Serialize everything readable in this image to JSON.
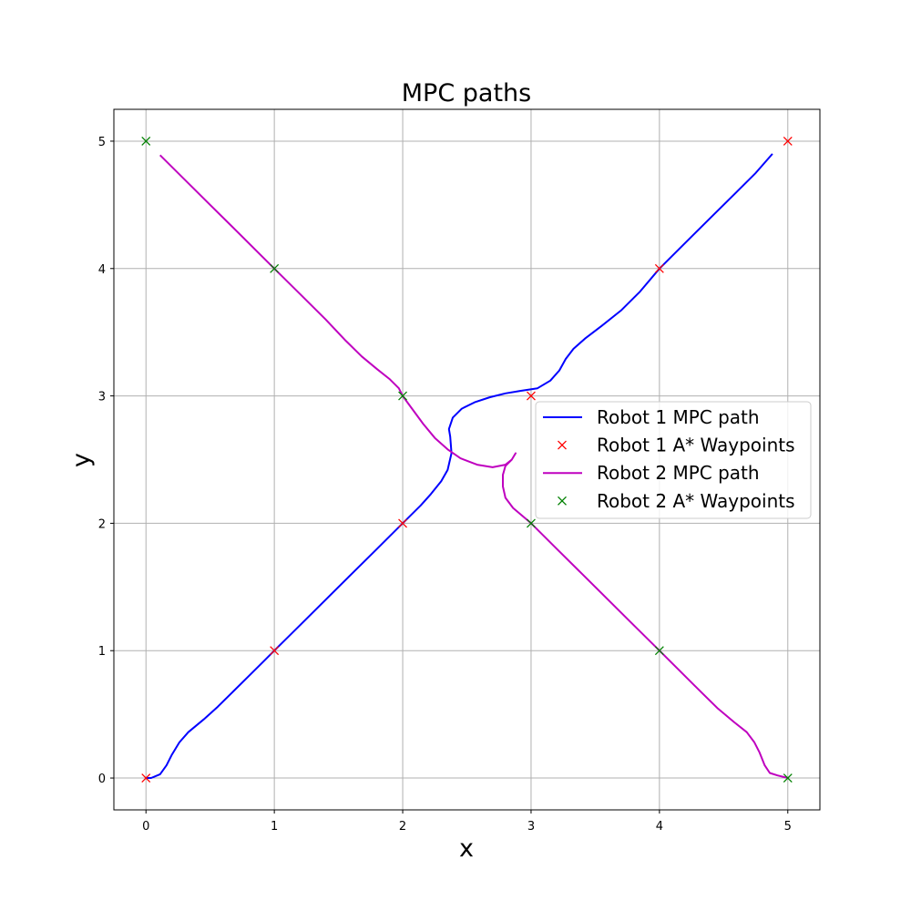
{
  "chart_data": {
    "type": "line",
    "title": "MPC paths",
    "xlabel": "x",
    "ylabel": "y",
    "xlim": [
      -0.25,
      5.25
    ],
    "ylim": [
      -0.25,
      5.25
    ],
    "xticks": [
      0,
      1,
      2,
      3,
      4,
      5
    ],
    "yticks": [
      0,
      1,
      2,
      3,
      4,
      5
    ],
    "grid": true,
    "legend_position": "center-right",
    "series": [
      {
        "name": "Robot 1 MPC path",
        "kind": "line",
        "color": "#0000ff",
        "x": [
          0.0,
          0.04,
          0.11,
          0.16,
          0.2,
          0.26,
          0.33,
          0.45,
          0.56,
          0.68,
          0.8,
          0.92,
          1.0,
          1.2,
          1.4,
          1.6,
          1.8,
          2.0,
          2.14,
          2.22,
          2.3,
          2.35,
          2.38,
          2.37,
          2.36,
          2.39,
          2.46,
          2.56,
          2.68,
          2.8,
          2.92,
          3.05,
          3.15,
          3.22,
          3.27,
          3.33,
          3.42,
          3.55,
          3.7,
          3.85,
          4.0,
          4.2,
          4.4,
          4.6,
          4.75,
          4.88
        ],
        "y": [
          0.0,
          0.0,
          0.03,
          0.1,
          0.18,
          0.28,
          0.36,
          0.46,
          0.56,
          0.68,
          0.8,
          0.92,
          1.0,
          1.2,
          1.4,
          1.6,
          1.8,
          2.0,
          2.14,
          2.23,
          2.33,
          2.42,
          2.55,
          2.68,
          2.74,
          2.83,
          2.9,
          2.95,
          2.99,
          3.02,
          3.04,
          3.06,
          3.12,
          3.2,
          3.29,
          3.37,
          3.45,
          3.55,
          3.67,
          3.82,
          4.0,
          4.2,
          4.4,
          4.6,
          4.75,
          4.9
        ]
      },
      {
        "name": "Robot 1 A* Waypoints",
        "kind": "marker",
        "marker": "x",
        "color": "#ff0000",
        "x": [
          0,
          1,
          2,
          3,
          4,
          5
        ],
        "y": [
          0,
          1,
          2,
          3,
          4,
          5
        ]
      },
      {
        "name": "Robot 2 MPC path",
        "kind": "line",
        "color": "#bf00bf",
        "x": [
          0.11,
          0.3,
          0.5,
          0.7,
          0.9,
          1.0,
          1.2,
          1.4,
          1.55,
          1.68,
          1.8,
          1.9,
          1.97,
          2.0,
          2.08,
          2.16,
          2.25,
          2.35,
          2.45,
          2.58,
          2.7,
          2.8,
          2.85,
          2.88,
          2.85,
          2.8,
          2.78,
          2.78,
          2.8,
          2.86,
          2.93,
          3.0,
          3.2,
          3.4,
          3.6,
          3.8,
          4.0,
          4.15,
          4.3,
          4.45,
          4.58,
          4.68,
          4.74,
          4.78,
          4.82,
          4.86,
          4.92,
          5.0
        ],
        "y": [
          4.89,
          4.7,
          4.5,
          4.3,
          4.1,
          4.0,
          3.8,
          3.6,
          3.44,
          3.31,
          3.21,
          3.13,
          3.06,
          3.0,
          2.89,
          2.78,
          2.67,
          2.58,
          2.51,
          2.46,
          2.44,
          2.46,
          2.5,
          2.55,
          2.5,
          2.45,
          2.38,
          2.29,
          2.2,
          2.12,
          2.06,
          2.0,
          1.8,
          1.6,
          1.4,
          1.2,
          1.0,
          0.85,
          0.7,
          0.55,
          0.44,
          0.36,
          0.28,
          0.2,
          0.1,
          0.04,
          0.02,
          0.0
        ]
      },
      {
        "name": "Robot 2 A* Waypoints",
        "kind": "marker",
        "marker": "x",
        "color": "#008000",
        "x": [
          0,
          1,
          2,
          3,
          4,
          5
        ],
        "y": [
          5,
          4,
          3,
          2,
          1,
          0
        ]
      }
    ]
  }
}
